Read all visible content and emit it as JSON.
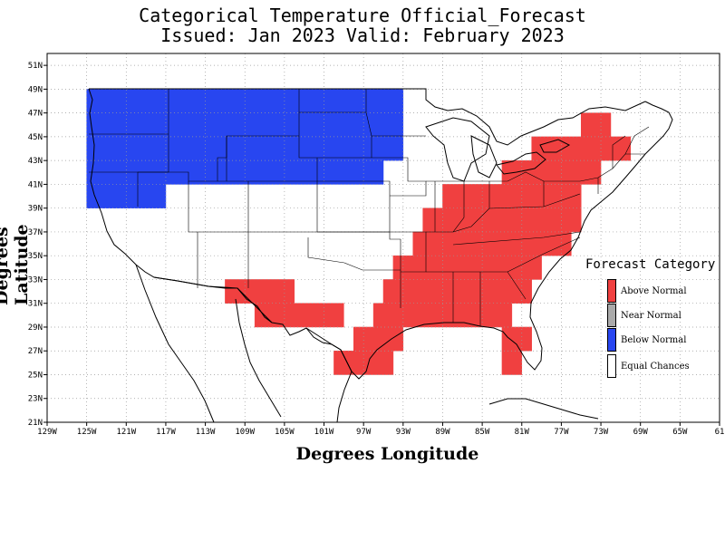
{
  "title": {
    "line1": "Categorical Temperature Official_Forecast",
    "line2": "Issued: Jan 2023 Valid: February 2023"
  },
  "axes": {
    "xlabel": "Degrees Longitude",
    "ylabel": "Degrees Latitude",
    "xticks": [
      "129W",
      "125W",
      "121W",
      "117W",
      "113W",
      "109W",
      "105W",
      "101W",
      "97W",
      "93W",
      "89W",
      "85W",
      "81W",
      "77W",
      "73W",
      "69W",
      "65W",
      "61"
    ],
    "yticks": [
      "51N",
      "49N",
      "47N",
      "45N",
      "43N",
      "41N",
      "39N",
      "37N",
      "35N",
      "33N",
      "31N",
      "29N",
      "27N",
      "25N",
      "23N",
      "21N"
    ]
  },
  "legend": {
    "title": "Forecast Category",
    "items": [
      {
        "label": "Above Normal",
        "color": "#f04040"
      },
      {
        "label": "Near Normal",
        "color": "#aaaaaa"
      },
      {
        "label": "Below Normal",
        "color": "#2846f0"
      },
      {
        "label": "Equal Chances",
        "color": "#ffffff"
      }
    ]
  },
  "forecast_regions": {
    "below_normal": {
      "color": "#2846f0",
      "cells": [
        [
          -125,
          49,
          -93,
          47
        ],
        [
          -125,
          47,
          -93,
          45
        ],
        [
          -125,
          45,
          -93,
          43
        ],
        [
          -125,
          43,
          -95,
          41
        ],
        [
          -125,
          41,
          -117,
          39
        ]
      ]
    },
    "above_normal": {
      "color": "#f04040",
      "cells": [
        [
          -75,
          47,
          -72,
          45
        ],
        [
          -80,
          45,
          -70,
          43
        ],
        [
          -83,
          43,
          -73,
          41
        ],
        [
          -89,
          41,
          -75,
          39
        ],
        [
          -91,
          39,
          -75,
          37
        ],
        [
          -92,
          37,
          -76,
          35
        ],
        [
          -94,
          35,
          -79,
          33
        ],
        [
          -111,
          33,
          -104,
          31
        ],
        [
          -95,
          33,
          -80,
          31
        ],
        [
          -108,
          31,
          -99,
          29
        ],
        [
          -96,
          31,
          -82,
          29
        ],
        [
          -98,
          29,
          -93,
          27
        ],
        [
          -83,
          29,
          -80,
          27
        ],
        [
          -100,
          27,
          -94,
          25
        ],
        [
          -83,
          27,
          -81,
          25
        ]
      ]
    }
  }
}
